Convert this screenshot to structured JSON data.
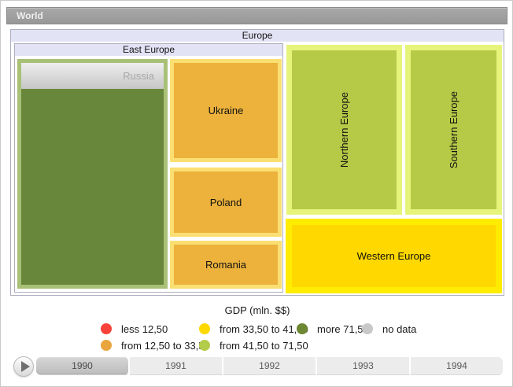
{
  "breadcrumb": {
    "world_label": "World"
  },
  "treemap": {
    "root_label": "Europe",
    "east_europe": {
      "label": "East Europe",
      "nodes": {
        "russia": {
          "label": "Russia",
          "fill": "#68873a",
          "border": "#a9c077"
        },
        "ukraine": {
          "label": "Ukraine",
          "fill": "#ecb23c",
          "border": "#fbdf73"
        },
        "poland": {
          "label": "Poland",
          "fill": "#ecb23c",
          "border": "#fbdf73"
        },
        "romania": {
          "label": "Romania",
          "fill": "#ecb23c",
          "border": "#fbdf73"
        }
      }
    },
    "nodes": {
      "northern": {
        "label": "Northern Europe",
        "fill": "#b6ca47",
        "border": "#e6f47c"
      },
      "southern": {
        "label": "Southern Europe",
        "fill": "#b6ca47",
        "border": "#e6f47c"
      },
      "western": {
        "label": "Western Europe",
        "fill": "#ffd800",
        "border": "#ffec00"
      }
    }
  },
  "legend": {
    "title": "GDP (mln. $$)",
    "items": [
      {
        "label": "less 12,50",
        "color": "#f9423a"
      },
      {
        "label": "from 33,50 to 41,50",
        "color": "#ffd800"
      },
      {
        "label": "more 71,50",
        "color": "#6d8733"
      },
      {
        "label": "no data",
        "color": "#c8c8c8"
      },
      {
        "label": "from 12,50 to 33,50",
        "color": "#eaa63e"
      },
      {
        "label": "from 41,50 to 71,50",
        "color": "#b3cc49"
      }
    ]
  },
  "timeline": {
    "years": [
      "1990",
      "1991",
      "1992",
      "1993",
      "1994"
    ],
    "selected_index": 0
  },
  "chart_data": {
    "type": "treemap",
    "title": "Europe",
    "breadcrumb_path": [
      "World",
      "Europe"
    ],
    "legend_title": "GDP (mln. $$)",
    "bins": [
      {
        "label": "less 12,50",
        "color": "#f9423a"
      },
      {
        "label": "from 12,50 to 33,50",
        "color": "#eaa63e"
      },
      {
        "label": "from 33,50 to 41,50",
        "color": "#ffd800"
      },
      {
        "label": "from 41,50 to 71,50",
        "color": "#b3cc49"
      },
      {
        "label": "more 71,50",
        "color": "#6d8733"
      },
      {
        "label": "no data",
        "color": "#c8c8c8"
      }
    ],
    "nodes": [
      {
        "name": "East Europe",
        "type": "group",
        "children": [
          {
            "name": "Russia",
            "gdp_bin": "more 71,50"
          },
          {
            "name": "Ukraine",
            "gdp_bin": "from 12,50 to 33,50"
          },
          {
            "name": "Poland",
            "gdp_bin": "from 12,50 to 33,50"
          },
          {
            "name": "Romania",
            "gdp_bin": "from 12,50 to 33,50"
          }
        ]
      },
      {
        "name": "Northern Europe",
        "gdp_bin": "from 41,50 to 71,50"
      },
      {
        "name": "Southern Europe",
        "gdp_bin": "from 41,50 to 71,50"
      },
      {
        "name": "Western Europe",
        "gdp_bin": "from 33,50 to 41,50"
      }
    ],
    "timeline": {
      "years": [
        "1990",
        "1991",
        "1992",
        "1993",
        "1994"
      ],
      "selected_year": "1990"
    }
  }
}
